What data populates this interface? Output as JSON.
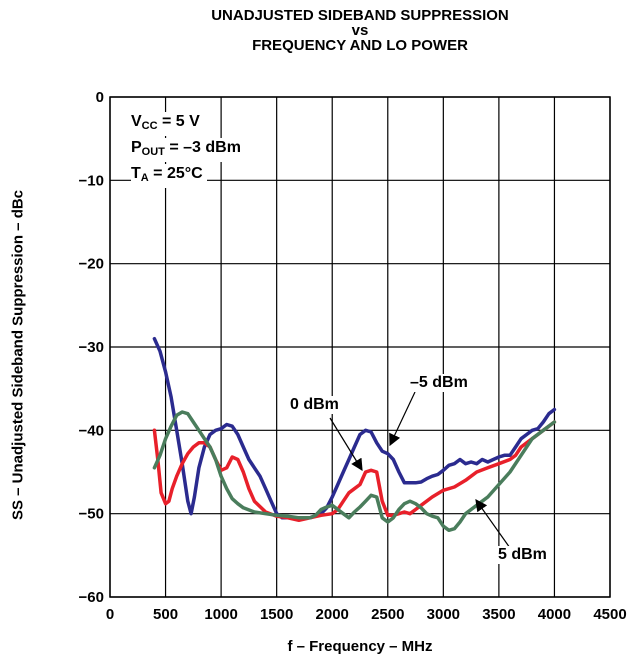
{
  "chart_data": {
    "type": "line",
    "title_lines": [
      "UNADJUSTED SIDEBAND SUPPRESSION",
      "vs",
      "FREQUENCY AND LO POWER"
    ],
    "xlabel": "f – Frequency – MHz",
    "ylabel": "SS – Unadjusted Sideband Suppression – dBc",
    "xlim": [
      0,
      4500
    ],
    "ylim": [
      -60,
      0
    ],
    "xticks": [
      0,
      500,
      1000,
      1500,
      2000,
      2500,
      3000,
      3500,
      4000,
      4500
    ],
    "yticks": [
      0,
      -10,
      -20,
      -30,
      -40,
      -50,
      -60
    ],
    "xtick_labels": [
      "0",
      "500",
      "1000",
      "1500",
      "2000",
      "2500",
      "3000",
      "3500",
      "4000",
      "4500"
    ],
    "ytick_labels": [
      "0",
      "−10",
      "−20",
      "−30",
      "−40",
      "−50",
      "−60"
    ],
    "grid": true,
    "conditions": {
      "vcc": {
        "main": "V",
        "sub": "CC",
        "rest": " = 5 V"
      },
      "pout": {
        "main": "P",
        "sub": "OUT",
        "rest": " = –3 dBm"
      },
      "ta": {
        "main": "T",
        "sub": "A",
        "rest": " = 25°C"
      }
    },
    "series": [
      {
        "name": "–5 dBm",
        "color": "#2b2b8f",
        "x": [
          400,
          450,
          500,
          550,
          600,
          650,
          700,
          730,
          760,
          800,
          850,
          900,
          950,
          1000,
          1050,
          1100,
          1150,
          1200,
          1250,
          1300,
          1350,
          1400,
          1450,
          1500,
          1550,
          1600,
          1700,
          1800,
          1900,
          1950,
          2000,
          2050,
          2100,
          2150,
          2200,
          2250,
          2300,
          2350,
          2400,
          2450,
          2500,
          2550,
          2600,
          2650,
          2700,
          2750,
          2800,
          2850,
          2900,
          2950,
          3000,
          3050,
          3100,
          3150,
          3200,
          3250,
          3300,
          3350,
          3400,
          3450,
          3500,
          3550,
          3600,
          3650,
          3700,
          3750,
          3800,
          3850,
          3900,
          3950,
          4000
        ],
        "y": [
          -29,
          -30.5,
          -33,
          -36,
          -40,
          -44,
          -48.5,
          -50,
          -48,
          -44.5,
          -42,
          -40.5,
          -40,
          -39.8,
          -39.3,
          -39.5,
          -40.5,
          -42,
          -43.5,
          -44.5,
          -45.5,
          -47,
          -48.5,
          -50,
          -50.5,
          -50.5,
          -50.5,
          -50.5,
          -50,
          -49.3,
          -48,
          -46.5,
          -45,
          -43.5,
          -42,
          -40.5,
          -40,
          -40.2,
          -41.5,
          -42.5,
          -42.8,
          -43.5,
          -45,
          -46.3,
          -46.3,
          -46.3,
          -46.2,
          -45.8,
          -45.5,
          -45.3,
          -44.8,
          -44.2,
          -44,
          -43.5,
          -44,
          -43.8,
          -44,
          -43.5,
          -43.8,
          -43.5,
          -43.2,
          -43,
          -43,
          -42,
          -41,
          -40.5,
          -40,
          -39.8,
          -39,
          -38,
          -37.5
        ]
      },
      {
        "name": "0 dBm",
        "color": "#e8202a",
        "x": [
          400,
          430,
          460,
          500,
          530,
          560,
          600,
          650,
          700,
          750,
          800,
          850,
          900,
          950,
          1000,
          1050,
          1100,
          1150,
          1200,
          1250,
          1300,
          1400,
          1500,
          1600,
          1700,
          1800,
          1900,
          2000,
          2050,
          2100,
          2150,
          2200,
          2250,
          2300,
          2350,
          2400,
          2450,
          2500,
          2550,
          2600,
          2650,
          2700,
          2750,
          2800,
          2900,
          3000,
          3100,
          3200,
          3300,
          3400,
          3500,
          3600,
          3650,
          3700,
          3750,
          3800,
          3850,
          3900,
          3950,
          4000
        ],
        "y": [
          -40,
          -43.5,
          -47.5,
          -48.8,
          -48.5,
          -47,
          -45.5,
          -44,
          -42.8,
          -42,
          -41.5,
          -41.5,
          -42,
          -43.5,
          -44.8,
          -44.5,
          -43.2,
          -43.5,
          -45,
          -47,
          -48.5,
          -49.8,
          -50.3,
          -50.5,
          -50.8,
          -50.5,
          -50.2,
          -50,
          -49.5,
          -48.5,
          -47.5,
          -47,
          -46.5,
          -45,
          -44.8,
          -45,
          -48.5,
          -50.2,
          -50.2,
          -50,
          -49.8,
          -50,
          -49.5,
          -49,
          -48,
          -47.2,
          -46.8,
          -46,
          -45,
          -44.5,
          -44,
          -43.5,
          -43,
          -42,
          -41.5,
          -41,
          -40.5,
          -40,
          -39.5,
          -39
        ]
      },
      {
        "name": "5 dBm",
        "color": "#4a7d5c",
        "x": [
          400,
          450,
          500,
          550,
          600,
          650,
          700,
          750,
          800,
          850,
          900,
          950,
          1000,
          1050,
          1100,
          1150,
          1200,
          1300,
          1400,
          1500,
          1600,
          1700,
          1800,
          1850,
          1900,
          1950,
          2000,
          2050,
          2100,
          2150,
          2200,
          2250,
          2300,
          2350,
          2400,
          2450,
          2500,
          2550,
          2600,
          2650,
          2700,
          2750,
          2800,
          2850,
          2900,
          2950,
          3000,
          3050,
          3100,
          3150,
          3200,
          3250,
          3300,
          3350,
          3400,
          3500,
          3600,
          3700,
          3800,
          3900,
          4000
        ],
        "y": [
          -44.5,
          -43,
          -41,
          -39.5,
          -38.2,
          -37.8,
          -38,
          -39,
          -40,
          -41,
          -42,
          -43.5,
          -45.5,
          -47,
          -48.2,
          -48.8,
          -49.3,
          -49.8,
          -50,
          -50.2,
          -50.3,
          -50.5,
          -50.5,
          -50.2,
          -49.5,
          -49.2,
          -49,
          -49.5,
          -50,
          -50.5,
          -49.8,
          -49.2,
          -48.5,
          -47.8,
          -48,
          -50.5,
          -51,
          -50.5,
          -49.5,
          -48.8,
          -48.5,
          -48.8,
          -49.3,
          -50,
          -50.3,
          -50.5,
          -51.5,
          -52,
          -51.8,
          -51,
          -50,
          -49.5,
          -49,
          -48.5,
          -48,
          -46.5,
          -45,
          -43,
          -41,
          -40,
          -39
        ]
      }
    ],
    "annotations": [
      {
        "text": "0 dBm",
        "series": "0 dBm"
      },
      {
        "text": "–5 dBm",
        "series": "–5 dBm"
      },
      {
        "text": "5 dBm",
        "series": "5 dBm"
      }
    ]
  }
}
